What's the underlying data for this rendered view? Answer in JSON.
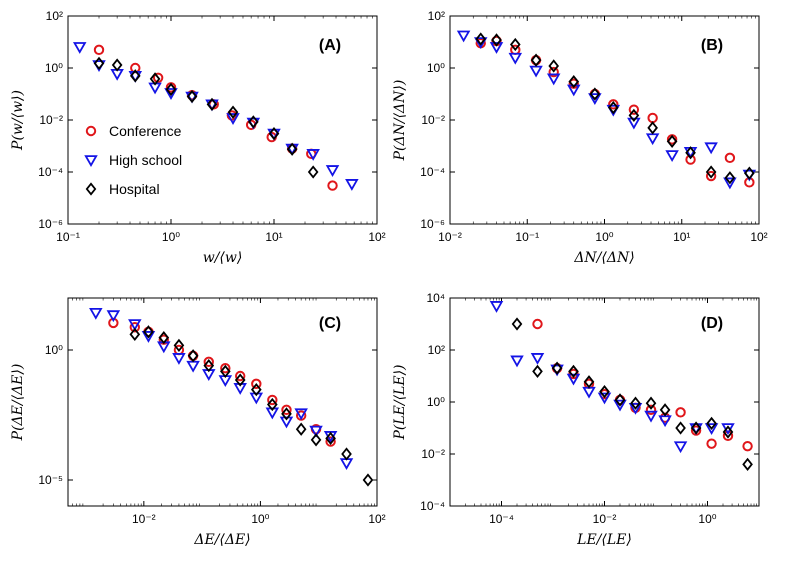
{
  "colors": {
    "conference": "#e0161a",
    "highschool": "#1414e6",
    "hospital": "#000000"
  },
  "chart_data": [
    {
      "type": "scatter",
      "panel_label": "(A)",
      "xlabel": "w/⟨w⟩",
      "ylabel": "P(w/⟨w⟩)",
      "xscale": "log",
      "yscale": "log",
      "xlim": [
        0.1,
        100
      ],
      "ylim": [
        1e-06,
        100
      ],
      "xticks": [
        0.1,
        1,
        10,
        100
      ],
      "xtick_labels": [
        "10⁻¹",
        "10⁰",
        "10¹",
        "10²"
      ],
      "yticks": [
        1e-06,
        0.0001,
        0.01,
        1,
        100
      ],
      "ytick_labels": [
        "10⁻⁶",
        "10⁻⁴",
        "10⁻²",
        "10⁰",
        "10²"
      ],
      "legend": {
        "placement": "middle-left",
        "entries": [
          "Conference",
          "High school",
          "Hospital"
        ]
      },
      "series": [
        {
          "name": "Conference",
          "marker": "circle",
          "x": [
            0.2,
            0.45,
            0.75,
            1.0,
            1.6,
            2.6,
            3.9,
            6.0,
            9.5,
            15,
            23,
            37
          ],
          "y": [
            5.0,
            1.0,
            0.42,
            0.18,
            0.09,
            0.04,
            0.015,
            0.0065,
            0.0022,
            0.0008,
            0.0005,
            3e-05
          ]
        },
        {
          "name": "High school",
          "marker": "triangle",
          "x": [
            0.13,
            0.2,
            0.3,
            0.45,
            0.7,
            1.0,
            1.6,
            2.5,
            4.0,
            6.3,
            10,
            15,
            24,
            37,
            57
          ],
          "y": [
            6.5,
            1.3,
            0.6,
            0.5,
            0.18,
            0.11,
            0.08,
            0.04,
            0.012,
            0.008,
            0.003,
            0.0008,
            0.0005,
            0.00012,
            3.5e-05
          ]
        },
        {
          "name": "Hospital",
          "marker": "diamond",
          "x": [
            0.2,
            0.3,
            0.45,
            0.7,
            1.0,
            1.6,
            2.5,
            4.0,
            6.3,
            10,
            15,
            24
          ],
          "y": [
            1.5,
            1.3,
            0.5,
            0.38,
            0.15,
            0.08,
            0.04,
            0.02,
            0.0085,
            0.003,
            0.00075,
            0.0001
          ]
        }
      ]
    },
    {
      "type": "scatter",
      "panel_label": "(B)",
      "xlabel": "ΔN/⟨ΔN⟩",
      "ylabel": "P(ΔN/⟨ΔN⟩)",
      "xscale": "log",
      "yscale": "log",
      "xlim": [
        0.01,
        100
      ],
      "ylim": [
        1e-06,
        100
      ],
      "xticks": [
        0.01,
        0.1,
        1,
        10,
        100
      ],
      "xtick_labels": [
        "10⁻²",
        "10⁻¹",
        "10⁰",
        "10¹",
        "10²"
      ],
      "yticks": [
        1e-06,
        0.0001,
        0.01,
        1,
        100
      ],
      "ytick_labels": [
        "10⁻⁶",
        "10⁻⁴",
        "10⁻²",
        "10⁰",
        "10²"
      ],
      "series": [
        {
          "name": "Conference",
          "marker": "circle",
          "x": [
            0.025,
            0.04,
            0.07,
            0.13,
            0.22,
            0.4,
            0.75,
            1.3,
            2.4,
            4.2,
            7.5,
            13,
            24,
            42,
            75
          ],
          "y": [
            9.0,
            11.0,
            5.0,
            2.0,
            0.7,
            0.25,
            0.1,
            0.04,
            0.025,
            0.012,
            0.0018,
            0.0003,
            7e-05,
            0.00035,
            4e-05
          ]
        },
        {
          "name": "High school",
          "marker": "triangle",
          "x": [
            0.015,
            0.025,
            0.04,
            0.07,
            0.13,
            0.22,
            0.4,
            0.75,
            1.3,
            2.4,
            4.2,
            7.5,
            13,
            24,
            42,
            75
          ],
          "y": [
            18,
            10,
            6.5,
            2.5,
            0.8,
            0.4,
            0.15,
            0.07,
            0.025,
            0.008,
            0.002,
            0.00045,
            0.0006,
            0.0009,
            4e-05,
            8e-05
          ]
        },
        {
          "name": "Hospital",
          "marker": "diamond",
          "x": [
            0.025,
            0.04,
            0.07,
            0.13,
            0.22,
            0.4,
            0.75,
            1.3,
            2.4,
            4.2,
            7.5,
            13,
            24,
            42,
            75
          ],
          "y": [
            13,
            12,
            8.0,
            2.0,
            1.2,
            0.3,
            0.1,
            0.03,
            0.015,
            0.005,
            0.0015,
            0.00055,
            0.0001,
            6e-05,
            9e-05
          ]
        }
      ]
    },
    {
      "type": "scatter",
      "panel_label": "(C)",
      "xlabel": "ΔE/⟨ΔE⟩",
      "ylabel": "P(ΔE/⟨ΔE⟩)",
      "xscale": "log",
      "yscale": "log",
      "xlim": [
        0.0005,
        100
      ],
      "ylim": [
        1e-06,
        100
      ],
      "xticks": [
        0.01,
        1,
        100
      ],
      "xtick_labels": [
        "10⁻²",
        "10⁰",
        "10²"
      ],
      "yticks": [
        1e-05,
        1
      ],
      "ytick_labels": [
        "10⁻⁵",
        "10⁰"
      ],
      "series": [
        {
          "name": "Conference",
          "marker": "circle",
          "x": [
            0.003,
            0.007,
            0.012,
            0.022,
            0.04,
            0.07,
            0.13,
            0.25,
            0.45,
            0.85,
            1.6,
            2.8,
            5.0,
            9.0,
            16
          ],
          "y": [
            11,
            7.5,
            5.0,
            2.5,
            1.0,
            0.6,
            0.35,
            0.2,
            0.1,
            0.05,
            0.012,
            0.005,
            0.003,
            0.0009,
            0.0003
          ]
        },
        {
          "name": "High school",
          "marker": "triangle",
          "x": [
            0.0015,
            0.003,
            0.007,
            0.012,
            0.022,
            0.04,
            0.07,
            0.13,
            0.25,
            0.45,
            0.85,
            1.6,
            2.8,
            5.0,
            9.0,
            16,
            30
          ],
          "y": [
            27,
            22,
            10,
            3.5,
            1.4,
            0.5,
            0.25,
            0.12,
            0.07,
            0.035,
            0.015,
            0.004,
            0.0018,
            0.0037,
            0.0008,
            0.0005,
            4.5e-05
          ]
        },
        {
          "name": "Hospital",
          "marker": "diamond",
          "x": [
            0.007,
            0.012,
            0.022,
            0.04,
            0.07,
            0.13,
            0.25,
            0.45,
            0.85,
            1.6,
            2.8,
            5.0,
            9.0,
            16,
            30,
            70
          ],
          "y": [
            4.0,
            5.0,
            3.0,
            1.5,
            0.6,
            0.25,
            0.15,
            0.07,
            0.03,
            0.008,
            0.0035,
            0.0009,
            0.00035,
            0.0004,
            0.0001,
            1e-05
          ]
        }
      ]
    },
    {
      "type": "scatter",
      "panel_label": "(D)",
      "xlabel": "LE/⟨LE⟩",
      "ylabel": "P(LE/⟨LE⟩)",
      "xscale": "log",
      "yscale": "log",
      "xlim": [
        1e-05,
        10
      ],
      "ylim": [
        0.0001,
        10000
      ],
      "xticks": [
        0.0001,
        0.01,
        1
      ],
      "xtick_labels": [
        "10⁻⁴",
        "10⁻²",
        "10⁰"
      ],
      "yticks": [
        0.0001,
        0.01,
        1,
        100,
        10000
      ],
      "ytick_labels": [
        "10⁻⁴",
        "10⁻²",
        "10⁰",
        "10²",
        "10⁴"
      ],
      "series": [
        {
          "name": "Conference",
          "marker": "circle",
          "x": [
            0.0005,
            0.0012,
            0.0025,
            0.005,
            0.01,
            0.02,
            0.04,
            0.08,
            0.15,
            0.3,
            0.6,
            1.2,
            2.5,
            6.0
          ],
          "y": [
            1000,
            20,
            12,
            5.0,
            2.0,
            1.2,
            0.6,
            0.5,
            0.25,
            0.4,
            0.08,
            0.025,
            0.05,
            0.02
          ]
        },
        {
          "name": "High school",
          "marker": "triangle",
          "x": [
            8e-05,
            0.0002,
            0.0005,
            0.0012,
            0.0025,
            0.005,
            0.01,
            0.02,
            0.04,
            0.08,
            0.15,
            0.3,
            0.6,
            1.2,
            2.5
          ],
          "y": [
            5000,
            40,
            50,
            18,
            8.0,
            2.5,
            1.5,
            0.8,
            0.6,
            0.3,
            0.2,
            0.02,
            0.1,
            0.1,
            0.1
          ]
        },
        {
          "name": "Hospital",
          "marker": "diamond",
          "x": [
            0.0002,
            0.0005,
            0.0012,
            0.0025,
            0.005,
            0.01,
            0.02,
            0.04,
            0.08,
            0.15,
            0.3,
            0.6,
            1.2,
            2.5,
            6.0
          ],
          "y": [
            1000,
            15,
            20,
            15,
            6.0,
            2.5,
            1.2,
            0.9,
            0.9,
            0.5,
            0.1,
            0.1,
            0.15,
            0.07,
            0.004
          ]
        }
      ]
    }
  ]
}
